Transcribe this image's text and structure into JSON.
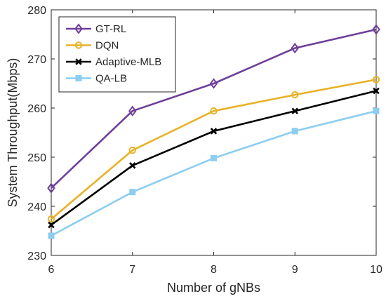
{
  "chart_data": {
    "type": "line",
    "xlabel": "Number of gNBs",
    "ylabel": "System Throughput(Mbps)",
    "x": [
      6,
      7,
      8,
      9,
      10
    ],
    "xlim": [
      6,
      10
    ],
    "ylim": [
      230,
      280
    ],
    "xticks": [
      "6",
      "7",
      "8",
      "9",
      "10"
    ],
    "yticks": [
      "230",
      "240",
      "250",
      "260",
      "270",
      "280"
    ],
    "grid": false,
    "legend_position": "top-left",
    "series": [
      {
        "name": "GT-RL",
        "values": [
          243.7,
          259.4,
          265.0,
          272.2,
          276.0
        ],
        "color": "#6e3f99",
        "marker": "diamond"
      },
      {
        "name": "DQN",
        "values": [
          237.4,
          251.4,
          259.4,
          262.7,
          265.8
        ],
        "color": "#e8b227",
        "marker": "circle"
      },
      {
        "name": "Adaptive-MLB",
        "values": [
          236.2,
          248.3,
          255.3,
          259.4,
          263.5
        ],
        "color": "#000000",
        "marker": "x"
      },
      {
        "name": "QA-LB",
        "values": [
          234.0,
          242.9,
          249.8,
          255.3,
          259.4
        ],
        "color": "#8ccdf0",
        "marker": "square"
      }
    ]
  }
}
